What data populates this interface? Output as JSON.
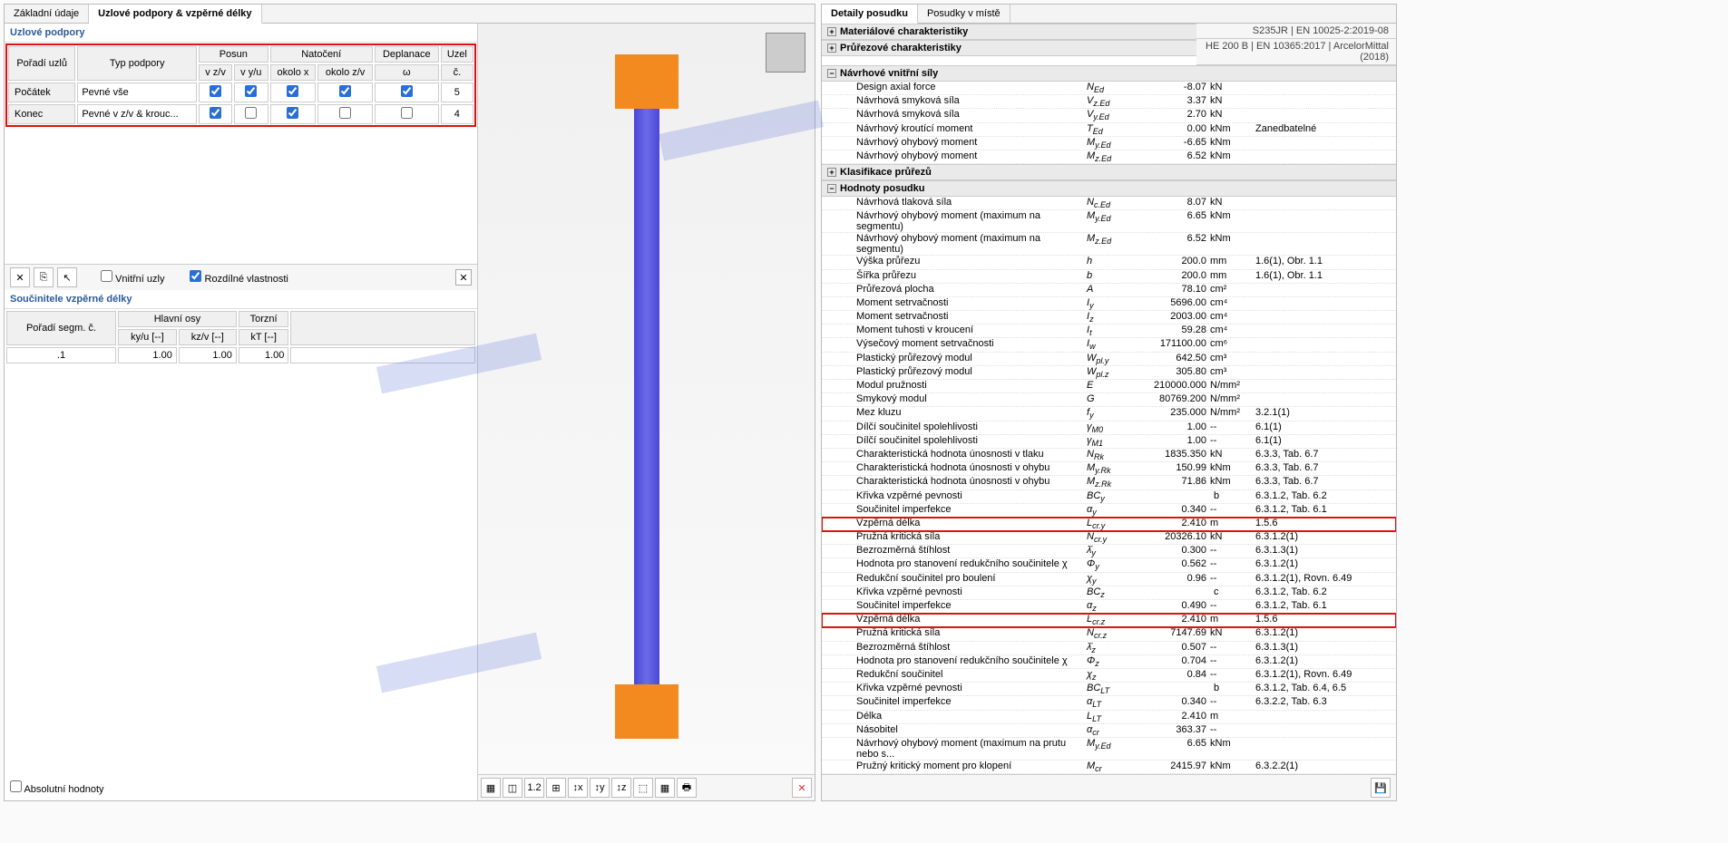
{
  "left": {
    "tabs": [
      "Základní údaje",
      "Uzlové podpory & vzpěrné délky"
    ],
    "activeTab": 1,
    "supports": {
      "title": "Uzlové podpory",
      "cols": {
        "c0": "Pořadí uzlů",
        "c1": "Typ podpory",
        "grp_posun": "Posun",
        "grp_natoceni": "Natočení",
        "grp_deplanace": "Deplanace",
        "grp_uzel": "Uzel",
        "posun_z": "v z/v",
        "posun_y": "v y/u",
        "nat_x": "okolo x",
        "nat_z": "okolo z/v",
        "dep_w": "ω",
        "uzel_c": "č."
      },
      "rows": [
        {
          "hdr": "Počátek",
          "type": "Pevné vše",
          "cz": true,
          "cy": true,
          "nx": true,
          "nz": true,
          "dw": true,
          "node": "5"
        },
        {
          "hdr": "Konec",
          "type": "Pevné v z/v & krouc...",
          "cz": true,
          "cy": false,
          "nx": true,
          "nz": false,
          "dw": false,
          "node": "4"
        }
      ],
      "chk_inner": "Vnitřní uzly",
      "chk_diff": "Rozdílné vlastnosti",
      "chk_inner_val": false,
      "chk_diff_val": true
    },
    "factors": {
      "title": "Součinitele vzpěrné délky",
      "cols": {
        "seg": "Pořadí segm. č.",
        "grp_main": "Hlavní osy",
        "grp_tor": "Torzní",
        "ky": "ky/u [--]",
        "kz": "kz/v [--]",
        "kt": "kT [--]"
      },
      "rows": [
        {
          "seg": ".1",
          "ky": "1.00",
          "kz": "1.00",
          "kt": "1.00"
        }
      ],
      "chk_abs": "Absolutní hodnoty",
      "chk_abs_val": false
    }
  },
  "right": {
    "tabs": [
      "Detaily posudku",
      "Posudky v místě"
    ],
    "activeTab": 0,
    "hdr1": "S235JR | EN 10025-2:2019-08",
    "hdr2": "HE 200 B | EN 10365:2017 | ArcelorMittal (2018)",
    "sections": {
      "mat": "Materiálové charakteristiky",
      "prurez": "Průřezové charakteristiky",
      "sily": "Návrhové vnitřní síly",
      "klas": "Klasifikace průřezů",
      "hodnoty": "Hodnoty posudku"
    },
    "sily_rows": [
      {
        "lbl": "Design axial force",
        "sym": "N",
        "sub": "Ed",
        "val": "-8.07",
        "unit": "kN",
        "ref": ""
      },
      {
        "lbl": "Návrhová smyková síla",
        "sym": "V",
        "sub": "z.Ed",
        "val": "3.37",
        "unit": "kN",
        "ref": ""
      },
      {
        "lbl": "Návrhová smyková síla",
        "sym": "V",
        "sub": "y.Ed",
        "val": "2.70",
        "unit": "kN",
        "ref": ""
      },
      {
        "lbl": "Návrhový kroutící moment",
        "sym": "T",
        "sub": "Ed",
        "val": "0.00",
        "unit": "kNm",
        "ref": "Zanedbatelné"
      },
      {
        "lbl": "Návrhový ohybový moment",
        "sym": "M",
        "sub": "y.Ed",
        "val": "-6.65",
        "unit": "kNm",
        "ref": ""
      },
      {
        "lbl": "Návrhový ohybový moment",
        "sym": "M",
        "sub": "z.Ed",
        "val": "6.52",
        "unit": "kNm",
        "ref": ""
      }
    ],
    "hodnoty_rows": [
      {
        "lbl": "Návrhová tlaková síla",
        "sym": "N",
        "sub": "c.Ed",
        "val": "8.07",
        "unit": "kN",
        "ref": ""
      },
      {
        "lbl": "Návrhový ohybový moment (maximum na segmentu)",
        "sym": "M",
        "sub": "y.Ed",
        "val": "6.65",
        "unit": "kNm",
        "ref": ""
      },
      {
        "lbl": "Návrhový ohybový moment (maximum na segmentu)",
        "sym": "M",
        "sub": "z.Ed",
        "val": "6.52",
        "unit": "kNm",
        "ref": ""
      },
      {
        "lbl": "Výška průřezu",
        "sym": "h",
        "sub": "",
        "val": "200.0",
        "unit": "mm",
        "ref": "1.6(1), Obr. 1.1"
      },
      {
        "lbl": "Šířka průřezu",
        "sym": "b",
        "sub": "",
        "val": "200.0",
        "unit": "mm",
        "ref": "1.6(1), Obr. 1.1"
      },
      {
        "lbl": "Průřezová plocha",
        "sym": "A",
        "sub": "",
        "val": "78.10",
        "unit": "cm²",
        "ref": ""
      },
      {
        "lbl": "Moment setrvačnosti",
        "sym": "I",
        "sub": "y",
        "val": "5696.00",
        "unit": "cm⁴",
        "ref": ""
      },
      {
        "lbl": "Moment setrvačnosti",
        "sym": "I",
        "sub": "z",
        "val": "2003.00",
        "unit": "cm⁴",
        "ref": ""
      },
      {
        "lbl": "Moment tuhosti v kroucení",
        "sym": "I",
        "sub": "t",
        "val": "59.28",
        "unit": "cm⁴",
        "ref": ""
      },
      {
        "lbl": "Výsečový moment setrvačnosti",
        "sym": "I",
        "sub": "w",
        "val": "171100.00",
        "unit": "cm⁶",
        "ref": ""
      },
      {
        "lbl": "Plastický průřezový modul",
        "sym": "W",
        "sub": "pl.y",
        "val": "642.50",
        "unit": "cm³",
        "ref": ""
      },
      {
        "lbl": "Plastický průřezový modul",
        "sym": "W",
        "sub": "pl.z",
        "val": "305.80",
        "unit": "cm³",
        "ref": ""
      },
      {
        "lbl": "Modul pružnosti",
        "sym": "E",
        "sub": "",
        "val": "210000.000",
        "unit": "N/mm²",
        "ref": ""
      },
      {
        "lbl": "Smykový modul",
        "sym": "G",
        "sub": "",
        "val": "80769.200",
        "unit": "N/mm²",
        "ref": ""
      },
      {
        "lbl": "Mez kluzu",
        "sym": "f",
        "sub": "y",
        "val": "235.000",
        "unit": "N/mm²",
        "ref": "3.2.1(1)"
      },
      {
        "lbl": "Dílčí součinitel spolehlivosti",
        "sym": "γ",
        "sub": "M0",
        "val": "1.00",
        "unit": "--",
        "ref": "6.1(1)"
      },
      {
        "lbl": "Dílčí součinitel spolehlivosti",
        "sym": "γ",
        "sub": "M1",
        "val": "1.00",
        "unit": "--",
        "ref": "6.1(1)"
      },
      {
        "lbl": "Charakteristická hodnota únosnosti v tlaku",
        "sym": "N",
        "sub": "Rk",
        "val": "1835.350",
        "unit": "kN",
        "ref": "6.3.3, Tab. 6.7"
      },
      {
        "lbl": "Charakteristická hodnota únosnosti v ohybu",
        "sym": "M",
        "sub": "y.Rk",
        "val": "150.99",
        "unit": "kNm",
        "ref": "6.3.3, Tab. 6.7"
      },
      {
        "lbl": "Charakteristická hodnota únosnosti v ohybu",
        "sym": "M",
        "sub": "z.Rk",
        "val": "71.86",
        "unit": "kNm",
        "ref": "6.3.3, Tab. 6.7"
      },
      {
        "lbl": "Křivka vzpěrné pevnosti",
        "sym": "BC",
        "sub": "y",
        "val": "b",
        "unit": "",
        "ref": "6.3.1.2, Tab. 6.2",
        "text": true
      },
      {
        "lbl": "Součinitel imperfekce",
        "sym": "α",
        "sub": "y",
        "val": "0.340",
        "unit": "--",
        "ref": "6.3.1.2, Tab. 6.1"
      },
      {
        "lbl": "Vzpěrná délka",
        "sym": "L",
        "sub": "cr.y",
        "val": "2.410",
        "unit": "m",
        "ref": "1.5.6",
        "hl": true
      },
      {
        "lbl": "Pružná kritická síla",
        "sym": "N",
        "sub": "cr.y",
        "val": "20326.10",
        "unit": "kN",
        "ref": "6.3.1.2(1)"
      },
      {
        "lbl": "Bezrozměrná štíhlost",
        "sym": "λ̄",
        "sub": "y",
        "val": "0.300",
        "unit": "--",
        "ref": "6.3.1.3(1)"
      },
      {
        "lbl": "Hodnota pro stanovení redukčního součinitele χ",
        "sym": "Φ",
        "sub": "y",
        "val": "0.562",
        "unit": "--",
        "ref": "6.3.1.2(1)"
      },
      {
        "lbl": "Redukční součinitel pro boulení",
        "sym": "χ",
        "sub": "y",
        "val": "0.96",
        "unit": "--",
        "ref": "6.3.1.2(1), Rovn. 6.49"
      },
      {
        "lbl": "Křivka vzpěrné pevnosti",
        "sym": "BC",
        "sub": "z",
        "val": "c",
        "unit": "",
        "ref": "6.3.1.2, Tab. 6.2",
        "text": true
      },
      {
        "lbl": "Součinitel imperfekce",
        "sym": "α",
        "sub": "z",
        "val": "0.490",
        "unit": "--",
        "ref": "6.3.1.2, Tab. 6.1"
      },
      {
        "lbl": "Vzpěrná délka",
        "sym": "L",
        "sub": "cr.z",
        "val": "2.410",
        "unit": "m",
        "ref": "1.5.6",
        "hl": true
      },
      {
        "lbl": "Pružná kritická síla",
        "sym": "N",
        "sub": "cr.z",
        "val": "7147.69",
        "unit": "kN",
        "ref": "6.3.1.2(1)"
      },
      {
        "lbl": "Bezrozměrná štíhlost",
        "sym": "λ̄",
        "sub": "z",
        "val": "0.507",
        "unit": "--",
        "ref": "6.3.1.3(1)"
      },
      {
        "lbl": "Hodnota pro stanovení redukčního součinitele χ",
        "sym": "Φ",
        "sub": "z",
        "val": "0.704",
        "unit": "--",
        "ref": "6.3.1.2(1)"
      },
      {
        "lbl": "Redukční součinitel",
        "sym": "χ",
        "sub": "z",
        "val": "0.84",
        "unit": "--",
        "ref": "6.3.1.2(1), Rovn. 6.49"
      },
      {
        "lbl": "Křivka vzpěrné pevnosti",
        "sym": "BC",
        "sub": "LT",
        "val": "b",
        "unit": "",
        "ref": "6.3.1.2, Tab. 6.4, 6.5",
        "text": true
      },
      {
        "lbl": "Součinitel imperfekce",
        "sym": "α",
        "sub": "LT",
        "val": "0.340",
        "unit": "--",
        "ref": "6.3.2.2, Tab. 6.3"
      },
      {
        "lbl": "Délka",
        "sym": "L",
        "sub": "LT",
        "val": "2.410",
        "unit": "m",
        "ref": ""
      },
      {
        "lbl": "Násobitel",
        "sym": "α",
        "sub": "cr",
        "val": "363.37",
        "unit": "--",
        "ref": ""
      },
      {
        "lbl": "Návrhový ohybový moment (maximum na prutu nebo s...",
        "sym": "M",
        "sub": "y.Ed",
        "val": "6.65",
        "unit": "kNm",
        "ref": ""
      },
      {
        "lbl": "Pružný kritický moment pro klopení",
        "sym": "M",
        "sub": "cr",
        "val": "2415.97",
        "unit": "kNm",
        "ref": "6.3.2.2(1)"
      }
    ]
  }
}
